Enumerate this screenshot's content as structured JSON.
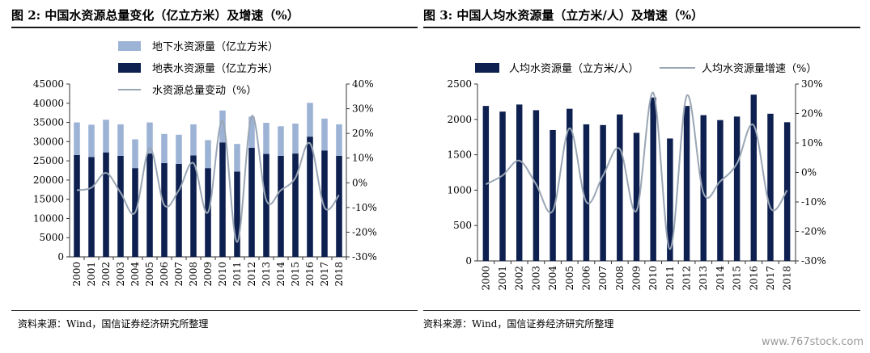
{
  "figures": [
    {
      "title": "图 2: 中国水资源总量变化（亿立方米）及增速（%）",
      "source": "资料来源：Wind，国信证券经济研究所整理"
    },
    {
      "title": "图 3: 中国人均水资源量（立方米/人）及增速（%）",
      "source": "资料来源：Wind，国信证券经济研究所整理"
    }
  ],
  "watermark": "www.767stock.com",
  "colors": {
    "dark_bar": "#0d2050",
    "light_bar": "#9db3d6",
    "line": "#9aa6b5"
  },
  "chart_data": [
    {
      "type": "bar",
      "stacked": true,
      "categories": [
        "2000",
        "2001",
        "2002",
        "2003",
        "2004",
        "2005",
        "2006",
        "2007",
        "2008",
        "2009",
        "2010",
        "2011",
        "2012",
        "2013",
        "2014",
        "2015",
        "2016",
        "2017",
        "2018"
      ],
      "series": [
        {
          "name": "地表水资源量（亿立方米）",
          "values": [
            26500,
            26000,
            27200,
            26300,
            23100,
            26900,
            24400,
            24200,
            26400,
            23100,
            29800,
            22200,
            28400,
            26800,
            26300,
            26900,
            31300,
            27700,
            26300
          ]
        },
        {
          "name": "地下水资源量（亿立方米）",
          "values": [
            8500,
            8400,
            8500,
            8200,
            7500,
            8100,
            7600,
            7600,
            8100,
            7300,
            8300,
            7200,
            8100,
            8100,
            7700,
            7800,
            8800,
            8300,
            8200
          ]
        },
        {
          "name": "水资源总量变动（%）",
          "axis": "right",
          "kind": "line",
          "values": [
            -3,
            -2,
            4,
            -4,
            -12,
            14,
            -9,
            -3,
            8,
            -12,
            25,
            -24,
            27,
            -7,
            -3,
            2,
            16,
            -10,
            -5
          ]
        }
      ],
      "y_left": {
        "min": 0,
        "max": 45000,
        "ticks": [
          0,
          5000,
          10000,
          15000,
          20000,
          25000,
          30000,
          35000,
          40000,
          45000
        ]
      },
      "y_right": {
        "min": -30,
        "max": 40,
        "ticks": [
          "-30%",
          "-20%",
          "-10%",
          "0%",
          "10%",
          "20%",
          "30%",
          "40%"
        ]
      },
      "legend": "top-left",
      "legend_entries": [
        "地下水资源量（亿立方米）",
        "地表水资源量（亿立方米）",
        "水资源总量变动（%）"
      ],
      "grid": false
    },
    {
      "type": "bar",
      "categories": [
        "2000",
        "2001",
        "2002",
        "2003",
        "2004",
        "2005",
        "2006",
        "2007",
        "2008",
        "2009",
        "2010",
        "2011",
        "2012",
        "2013",
        "2014",
        "2015",
        "2016",
        "2017",
        "2018"
      ],
      "series": [
        {
          "name": "人均水资源量（立方米/人）",
          "values": [
            2190,
            2110,
            2210,
            2130,
            1850,
            2150,
            1930,
            1920,
            2070,
            1810,
            2310,
            1730,
            2190,
            2060,
            1990,
            2040,
            2350,
            2080,
            1960
          ]
        },
        {
          "name": "人均水资源量增速（%）",
          "axis": "right",
          "kind": "line",
          "values": [
            -4,
            -1,
            4,
            -4,
            -13,
            15,
            -10,
            -1,
            8,
            -13,
            27,
            -26,
            26,
            -7,
            -3,
            3,
            16,
            -12,
            -6
          ]
        }
      ],
      "y_left": {
        "min": 0,
        "max": 2500,
        "ticks": [
          0,
          500,
          1000,
          1500,
          2000,
          2500
        ]
      },
      "y_right": {
        "min": -30,
        "max": 30,
        "ticks": [
          "-30%",
          "-20%",
          "-10%",
          "0%",
          "10%",
          "20%",
          "30%"
        ]
      },
      "legend": "top",
      "legend_entries": [
        "人均水资源量（立方米/人）",
        "人均水资源量增速（%）"
      ],
      "grid": false
    }
  ]
}
